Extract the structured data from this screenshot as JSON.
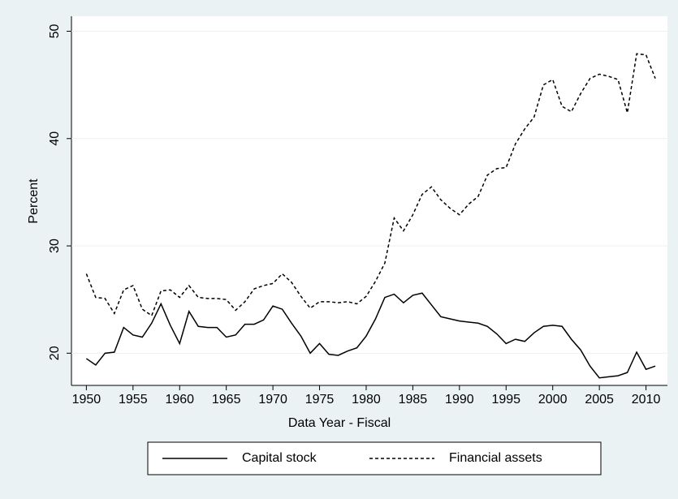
{
  "chart_data": {
    "type": "line",
    "x_label": "Data Year - Fiscal",
    "y_label": "Percent",
    "x": [
      1950,
      1951,
      1952,
      1953,
      1954,
      1955,
      1956,
      1957,
      1958,
      1959,
      1960,
      1961,
      1962,
      1963,
      1964,
      1965,
      1966,
      1967,
      1968,
      1969,
      1970,
      1971,
      1972,
      1973,
      1974,
      1975,
      1976,
      1977,
      1978,
      1979,
      1980,
      1981,
      1982,
      1983,
      1984,
      1985,
      1986,
      1987,
      1988,
      1989,
      1990,
      1991,
      1992,
      1993,
      1994,
      1995,
      1996,
      1997,
      1998,
      1999,
      2000,
      2001,
      2002,
      2003,
      2004,
      2005,
      2006,
      2007,
      2008,
      2009,
      2010,
      2011
    ],
    "series": [
      {
        "name": "Capital stock",
        "color": "#000000",
        "dash": "solid",
        "values": [
          19.5,
          18.9,
          20.0,
          20.1,
          22.4,
          21.7,
          21.5,
          22.8,
          24.6,
          22.6,
          20.9,
          23.9,
          22.5,
          22.4,
          22.4,
          21.5,
          21.7,
          22.7,
          22.7,
          23.1,
          24.4,
          24.1,
          22.8,
          21.6,
          20.0,
          20.9,
          19.9,
          19.8,
          20.2,
          20.5,
          21.6,
          23.2,
          25.2,
          25.5,
          24.7,
          25.4,
          25.6,
          24.5,
          23.4,
          23.2,
          23.0,
          22.9,
          22.8,
          22.5,
          21.8,
          20.9,
          21.3,
          21.1,
          21.9,
          22.5,
          22.6,
          22.5,
          21.3,
          20.3,
          18.8,
          17.7,
          17.8,
          17.9,
          18.2,
          20.1,
          18.5,
          18.8
        ]
      },
      {
        "name": "Financial assets",
        "color": "#000000",
        "dash": "dashed",
        "values": [
          27.4,
          25.2,
          25.1,
          23.7,
          25.9,
          26.3,
          24.1,
          23.5,
          25.8,
          25.9,
          25.2,
          26.3,
          25.2,
          25.1,
          25.1,
          25.0,
          24.0,
          24.8,
          26.0,
          26.3,
          26.5,
          27.4,
          26.6,
          25.3,
          24.2,
          24.8,
          24.8,
          24.7,
          24.8,
          24.6,
          25.3,
          26.7,
          28.4,
          32.6,
          31.4,
          32.9,
          34.8,
          35.5,
          34.3,
          33.5,
          32.9,
          33.9,
          34.6,
          36.6,
          37.2,
          37.3,
          39.5,
          40.9,
          42.0,
          45.0,
          45.5,
          43.0,
          42.5,
          44.2,
          45.6,
          46.0,
          45.8,
          45.5,
          42.4,
          47.9,
          47.8,
          45.6
        ]
      }
    ],
    "xlim": [
      1948.4,
      2012.3
    ],
    "xticks": [
      1950,
      1955,
      1960,
      1965,
      1970,
      1975,
      1980,
      1985,
      1990,
      1995,
      2000,
      2005,
      2010
    ],
    "ylim": [
      17,
      51.4
    ],
    "yticks": [
      20,
      30,
      40,
      50
    ],
    "grid": true,
    "legend": "bottom"
  }
}
